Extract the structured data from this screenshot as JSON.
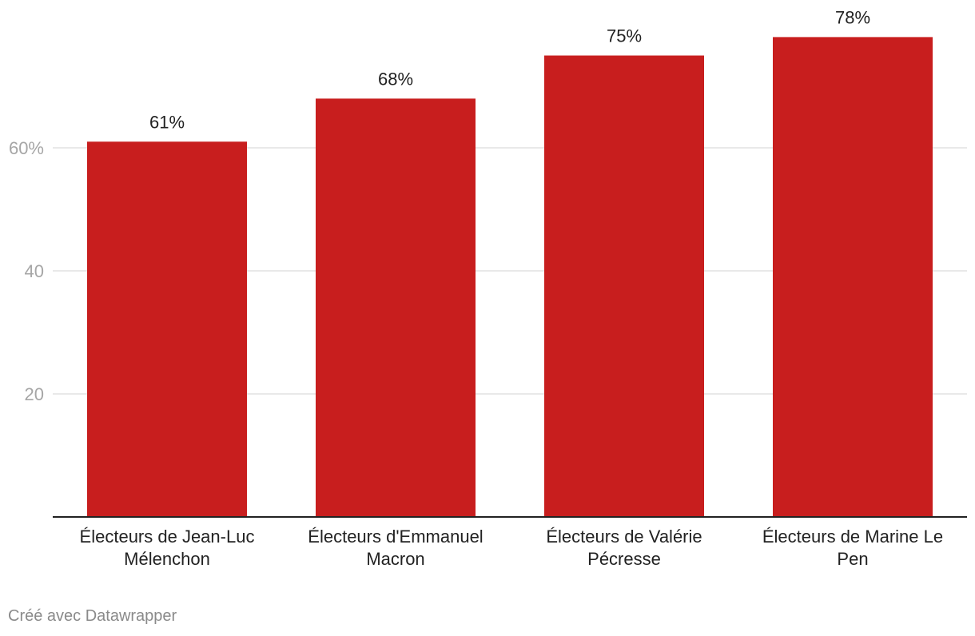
{
  "chart_data": {
    "type": "bar",
    "categories": [
      "Électeurs de Jean-Luc Mélenchon",
      "Électeurs d'Emmanuel Macron",
      "Électeurs de Valérie Pécresse",
      "Électeurs de Marine Le Pen"
    ],
    "category_lines": [
      [
        "Électeurs de Jean-Luc",
        "Mélenchon"
      ],
      [
        "Électeurs d'Emmanuel",
        "Macron"
      ],
      [
        "Électeurs de Valérie",
        "Pécresse"
      ],
      [
        "Électeurs de Marine Le",
        "Pen"
      ]
    ],
    "values": [
      61,
      68,
      75,
      78
    ],
    "value_labels": [
      "61%",
      "68%",
      "75%",
      "78%"
    ],
    "yticks": [
      {
        "value": 60,
        "label": "60%"
      },
      {
        "value": 40,
        "label": "40"
      },
      {
        "value": 20,
        "label": "20"
      }
    ],
    "ylim": [
      0,
      80
    ],
    "grid": true,
    "bar_color": "#c81e1e"
  },
  "footer": {
    "credit": "Créé avec Datawrapper"
  }
}
